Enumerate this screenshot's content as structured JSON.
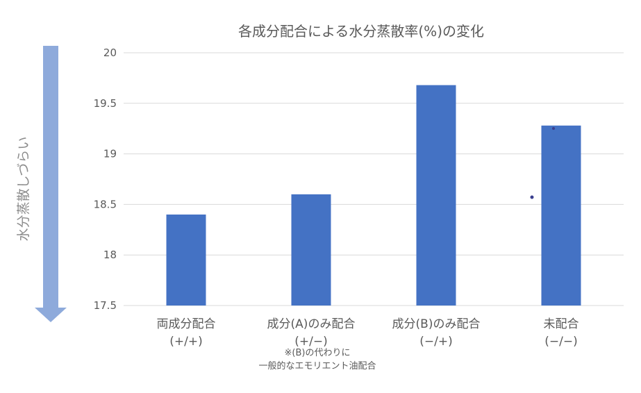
{
  "chart_data": {
    "type": "bar",
    "title": "各成分配合による水分蒸散率(%)の変化",
    "side_label": "水分蒸散しづらい",
    "ylim": [
      17.5,
      20
    ],
    "yticks": [
      17.5,
      18,
      18.5,
      19,
      19.5,
      20
    ],
    "ytick_labels": [
      "17.5",
      "18",
      "18.5",
      "19",
      "19.5",
      "20"
    ],
    "grid": true,
    "bar_color": "#4472c4",
    "arrow_color": "#8eaadb",
    "categories": [
      {
        "line1": "両成分配合",
        "line2": "(+/+)",
        "value": 18.4
      },
      {
        "line1": "成分(A)のみ配合",
        "line2": "(+/−)",
        "value": 18.6
      },
      {
        "line1": "成分(B)のみ配合",
        "line2": "(−/+)",
        "value": 19.68
      },
      {
        "line1": "未配合",
        "line2": "(−/−)",
        "value": 19.28
      }
    ],
    "note": [
      "※(B)の代わりに",
      "一般的なエモリエント油配合"
    ]
  }
}
